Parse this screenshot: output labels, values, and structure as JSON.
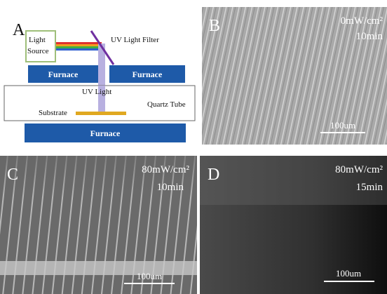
{
  "panel_a": {
    "label": "A",
    "light_source": [
      "Light",
      "Source"
    ],
    "uv_light_filter": "UV Light Filter",
    "furnaces": [
      "Furnace",
      "Furnace",
      "Furnace"
    ],
    "uv_light": "UV Light",
    "quartz_tube": "Quartz Tube",
    "substrate": "Substrate"
  },
  "panel_b": {
    "label": "B",
    "intensity": "0mW/cm²",
    "time": "10min",
    "scale_bar": "100um"
  },
  "panel_c": {
    "label": "C",
    "intensity": "80mW/cm²",
    "time": "10min",
    "scale_bar": "100um"
  },
  "panel_d": {
    "label": "D",
    "intensity": "80mW/cm²",
    "time": "15min",
    "scale_bar": "100um"
  }
}
